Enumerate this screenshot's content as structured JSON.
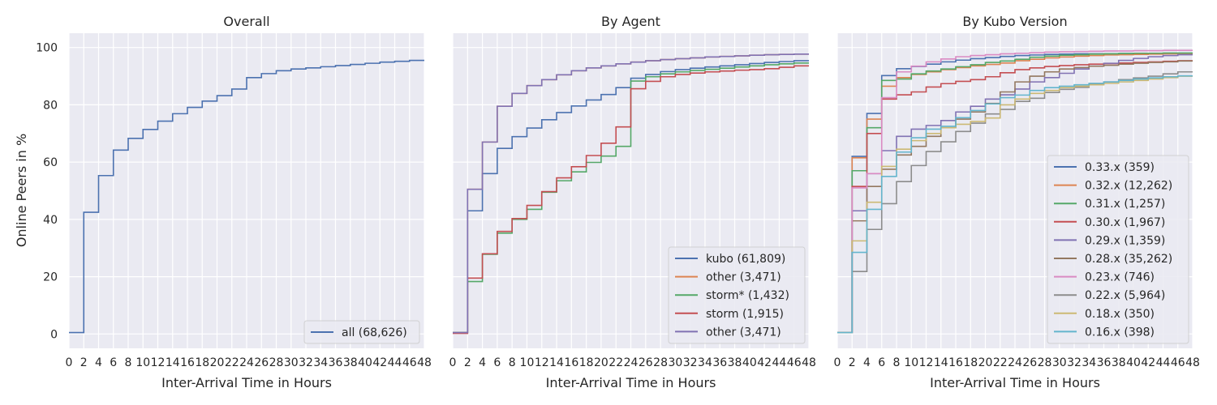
{
  "figure": {
    "ylabel": "Online Peers in %"
  },
  "chart_data": [
    {
      "type": "line",
      "title": "Overall",
      "xlabel": "Inter-Arrival Time in Hours",
      "ylabel": "Online Peers in %",
      "xlim": [
        0,
        48
      ],
      "ylim": [
        -5,
        105
      ],
      "xticks": [
        0,
        2,
        4,
        6,
        8,
        10,
        12,
        14,
        16,
        18,
        20,
        22,
        24,
        26,
        28,
        30,
        32,
        34,
        36,
        38,
        40,
        42,
        44,
        46,
        48
      ],
      "yticks": [
        0,
        20,
        40,
        60,
        80,
        100
      ],
      "grid": true,
      "legend_position": "bottom-right",
      "x": [
        0,
        2,
        4,
        6,
        8,
        10,
        12,
        14,
        16,
        18,
        20,
        22,
        24,
        26,
        28,
        30,
        32,
        34,
        36,
        38,
        40,
        42,
        44,
        46,
        48
      ],
      "series": [
        {
          "name": "all (68,626)",
          "color": "#4c72b0",
          "values": [
            0.5,
            42.5,
            55.3,
            64.2,
            68.3,
            71.4,
            74.3,
            76.9,
            79.1,
            81.3,
            83.2,
            85.5,
            89.5,
            90.9,
            91.9,
            92.5,
            92.9,
            93.3,
            93.7,
            94.1,
            94.5,
            94.9,
            95.2,
            95.5,
            95.5
          ]
        }
      ]
    },
    {
      "type": "line",
      "title": "By Agent",
      "xlabel": "Inter-Arrival Time in Hours",
      "xlim": [
        0,
        48
      ],
      "ylim": [
        -5,
        105
      ],
      "xticks": [
        0,
        2,
        4,
        6,
        8,
        10,
        12,
        14,
        16,
        18,
        20,
        22,
        24,
        26,
        28,
        30,
        32,
        34,
        36,
        38,
        40,
        42,
        44,
        46,
        48
      ],
      "grid": true,
      "legend_position": "bottom-right",
      "x": [
        0,
        2,
        4,
        6,
        8,
        10,
        12,
        14,
        16,
        18,
        20,
        22,
        24,
        26,
        28,
        30,
        32,
        34,
        36,
        38,
        40,
        42,
        44,
        46,
        48
      ],
      "series": [
        {
          "name": "kubo (61,809)",
          "color": "#4c72b0",
          "values": [
            0.5,
            43.0,
            56.0,
            64.8,
            68.9,
            71.9,
            74.8,
            77.3,
            79.6,
            81.7,
            83.6,
            86.0,
            89.3,
            90.6,
            91.6,
            92.3,
            92.8,
            93.2,
            93.6,
            94.0,
            94.4,
            94.8,
            95.1,
            95.4,
            95.4
          ]
        },
        {
          "name": "other (3,471)",
          "color": "#dd8452",
          "values": [
            0.5,
            50.5,
            67.0,
            79.5,
            84.0,
            86.7,
            88.8,
            90.5,
            91.9,
            92.9,
            93.6,
            94.3,
            94.9,
            95.4,
            95.8,
            96.1,
            96.4,
            96.7,
            96.9,
            97.1,
            97.3,
            97.5,
            97.6,
            97.7,
            97.7
          ]
        },
        {
          "name": "storm* (1,432)",
          "color": "#55a868",
          "values": [
            0.5,
            18.3,
            27.8,
            35.2,
            40.0,
            43.5,
            49.5,
            53.5,
            56.6,
            59.9,
            62.1,
            65.5,
            88.3,
            89.8,
            90.8,
            91.5,
            92.0,
            92.4,
            92.8,
            93.2,
            93.6,
            94.0,
            94.3,
            94.6,
            94.6
          ]
        },
        {
          "name": "storm (1,915)",
          "color": "#c44e52",
          "values": [
            0.2,
            19.5,
            28.0,
            35.8,
            40.3,
            44.9,
            49.7,
            54.5,
            58.4,
            62.3,
            66.6,
            72.3,
            85.6,
            88.2,
            89.8,
            90.6,
            91.1,
            91.5,
            91.8,
            92.1,
            92.3,
            92.6,
            93.1,
            93.6,
            93.6
          ]
        },
        {
          "name": "other (3,471)",
          "color": "#8172b3",
          "values": [
            0.5,
            50.5,
            67.0,
            79.5,
            84.0,
            86.7,
            88.8,
            90.5,
            91.9,
            92.9,
            93.6,
            94.3,
            94.9,
            95.4,
            95.8,
            96.1,
            96.4,
            96.7,
            96.9,
            97.1,
            97.3,
            97.5,
            97.6,
            97.7,
            97.7
          ]
        }
      ]
    },
    {
      "type": "line",
      "title": "By Kubo Version",
      "xlabel": "Inter-Arrival Time in Hours",
      "xlim": [
        0,
        48
      ],
      "ylim": [
        -5,
        105
      ],
      "xticks": [
        0,
        2,
        4,
        6,
        8,
        10,
        12,
        14,
        16,
        18,
        20,
        22,
        24,
        26,
        28,
        30,
        32,
        34,
        36,
        38,
        40,
        42,
        44,
        46,
        48
      ],
      "grid": true,
      "legend_position": "center-right",
      "x": [
        0,
        2,
        4,
        6,
        8,
        10,
        12,
        14,
        16,
        18,
        20,
        22,
        24,
        26,
        28,
        30,
        32,
        34,
        36,
        38,
        40,
        42,
        44,
        46,
        48
      ],
      "series": [
        {
          "name": "0.33.x (359)",
          "color": "#4c72b0",
          "values": [
            0.5,
            62.0,
            77.0,
            90.2,
            92.6,
            93.4,
            94.2,
            95.0,
            95.6,
            96.1,
            96.5,
            96.9,
            97.2,
            97.4,
            97.6,
            97.7,
            97.8,
            97.8,
            97.8,
            97.9,
            97.9,
            97.9,
            97.9,
            97.9,
            97.9
          ]
        },
        {
          "name": "0.32.x (12,262)",
          "color": "#dd8452",
          "values": [
            0.5,
            61.5,
            75.0,
            86.5,
            89.5,
            90.6,
            91.5,
            92.3,
            93.0,
            93.6,
            94.1,
            94.6,
            95.4,
            95.9,
            96.4,
            96.7,
            97.0,
            97.2,
            97.4,
            97.5,
            97.6,
            97.7,
            97.8,
            97.8,
            97.8
          ]
        },
        {
          "name": "0.31.x (1,257)",
          "color": "#55a868",
          "values": [
            0.5,
            57.0,
            72.0,
            88.5,
            89.0,
            90.8,
            91.8,
            92.5,
            93.3,
            94.0,
            94.8,
            95.3,
            95.9,
            96.6,
            97.0,
            97.3,
            97.5,
            97.7,
            97.8,
            97.9,
            98.0,
            98.0,
            98.1,
            98.1,
            98.1
          ]
        },
        {
          "name": "0.30.x (1,967)",
          "color": "#c44e52",
          "values": [
            0.5,
            51.5,
            70.0,
            82.0,
            83.5,
            84.5,
            86.2,
            87.4,
            88.2,
            88.8,
            89.8,
            91.2,
            92.3,
            92.9,
            93.4,
            93.7,
            94.0,
            94.2,
            94.4,
            94.6,
            94.8,
            95.0,
            95.2,
            95.4,
            95.4
          ]
        },
        {
          "name": "0.29.x (1,359)",
          "color": "#8172b3",
          "values": [
            0.5,
            43.0,
            56.0,
            64.0,
            69.0,
            71.5,
            72.8,
            74.5,
            77.5,
            79.5,
            82.0,
            83.5,
            85.5,
            88.0,
            89.5,
            91.0,
            92.5,
            93.5,
            94.5,
            95.5,
            96.2,
            96.8,
            97.2,
            97.5,
            97.5
          ]
        },
        {
          "name": "0.28.x (35,262)",
          "color": "#937860",
          "values": [
            0.5,
            39.5,
            51.5,
            57.5,
            62.5,
            65.5,
            69.0,
            72.0,
            75.0,
            77.5,
            80.5,
            84.5,
            88.0,
            90.0,
            91.5,
            92.5,
            93.0,
            93.5,
            93.8,
            94.2,
            94.5,
            94.8,
            95.0,
            95.3,
            95.3
          ]
        },
        {
          "name": "0.23.x (746)",
          "color": "#da8bc3",
          "values": [
            0.5,
            51.0,
            56.0,
            82.5,
            91.5,
            93.5,
            95.0,
            96.0,
            96.8,
            97.2,
            97.5,
            97.8,
            98.0,
            98.2,
            98.4,
            98.5,
            98.6,
            98.7,
            98.8,
            98.8,
            98.9,
            98.9,
            99.0,
            99.0,
            99.0
          ]
        },
        {
          "name": "0.22.x (5,964)",
          "color": "#8c8c8c",
          "values": [
            0.5,
            21.8,
            36.5,
            45.5,
            53.2,
            58.8,
            63.7,
            67.1,
            70.7,
            73.6,
            76.8,
            78.4,
            81.2,
            82.3,
            84.3,
            85.4,
            86.1,
            87.2,
            88.0,
            88.8,
            89.4,
            90.0,
            90.8,
            91.5,
            91.5
          ]
        },
        {
          "name": "0.18.x (350)",
          "color": "#ccb974",
          "values": [
            0.5,
            32.5,
            46.0,
            58.5,
            64.5,
            67.5,
            70.0,
            72.0,
            73.2,
            74.2,
            75.4,
            80.0,
            82.0,
            84.0,
            85.0,
            86.0,
            86.5,
            87.0,
            87.5,
            88.0,
            88.5,
            89.0,
            89.5,
            90.0,
            90.0
          ]
        },
        {
          "name": "0.16.x (398)",
          "color": "#64b5cd",
          "values": [
            0.5,
            28.5,
            43.5,
            55.0,
            63.5,
            68.5,
            71.5,
            72.5,
            75.5,
            78.0,
            80.3,
            82.5,
            83.4,
            85.0,
            86.0,
            86.5,
            87.0,
            87.5,
            88.0,
            88.5,
            89.0,
            89.4,
            89.8,
            90.1,
            90.1
          ]
        }
      ]
    }
  ]
}
